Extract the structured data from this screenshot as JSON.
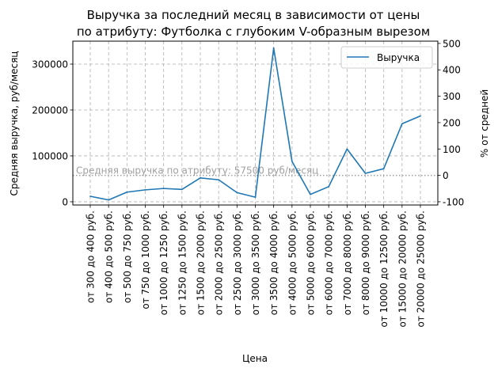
{
  "chart_data": {
    "type": "line",
    "title_line1": "Выручка за последний месяц в зависимости от цены",
    "title_line2": "по атрибуту: Футболка с глубоким V-образным вырезом",
    "xlabel": "Цена",
    "ylabel": "Средняя выручка, руб/месяц",
    "ylabel_right": "% от средней",
    "grid": true,
    "legend_position": "top-right",
    "color": "#1f77b4",
    "mean_line_color": "#a0a0a0",
    "ylim": [
      -7000,
      350000
    ],
    "ylim_right": [
      -112.17,
      508.7
    ],
    "yticks": [
      0,
      100000,
      200000,
      300000
    ],
    "yticks_right": [
      -100,
      0,
      100,
      200,
      300,
      400,
      500
    ],
    "mean_value": 57500,
    "mean_label": "Средняя выручка по атрибуту: 57500 руб/месяц",
    "categories": [
      "от 300 до 400 руб.",
      "от 400 до 500 руб.",
      "от 500 до 750 руб.",
      "от 750 до 1000 руб.",
      "от 1000 до 1250 руб.",
      "от 1250 до 1500 руб.",
      "от 1500 до 2000 руб.",
      "от 2000 до 2500 руб.",
      "от 2500 до 3000 руб.",
      "от 3000 до 3500 руб.",
      "от 3500 до 4000 руб.",
      "от 4000 до 5000 руб.",
      "от 5000 до 6000 руб.",
      "от 6000 до 7000 руб.",
      "от 7000 до 8000 руб.",
      "от 8000 до 9000 руб.",
      "от 10000 до 12500 руб.",
      "от 15000 до 20000 руб.",
      "от 20000 до 25000 руб."
    ],
    "series": [
      {
        "name": "Выручка",
        "values": [
          12000,
          4000,
          21000,
          26000,
          29000,
          27000,
          52000,
          48000,
          20000,
          10000,
          335000,
          88000,
          16000,
          33000,
          115000,
          62000,
          72000,
          170000,
          187000
        ]
      }
    ]
  }
}
